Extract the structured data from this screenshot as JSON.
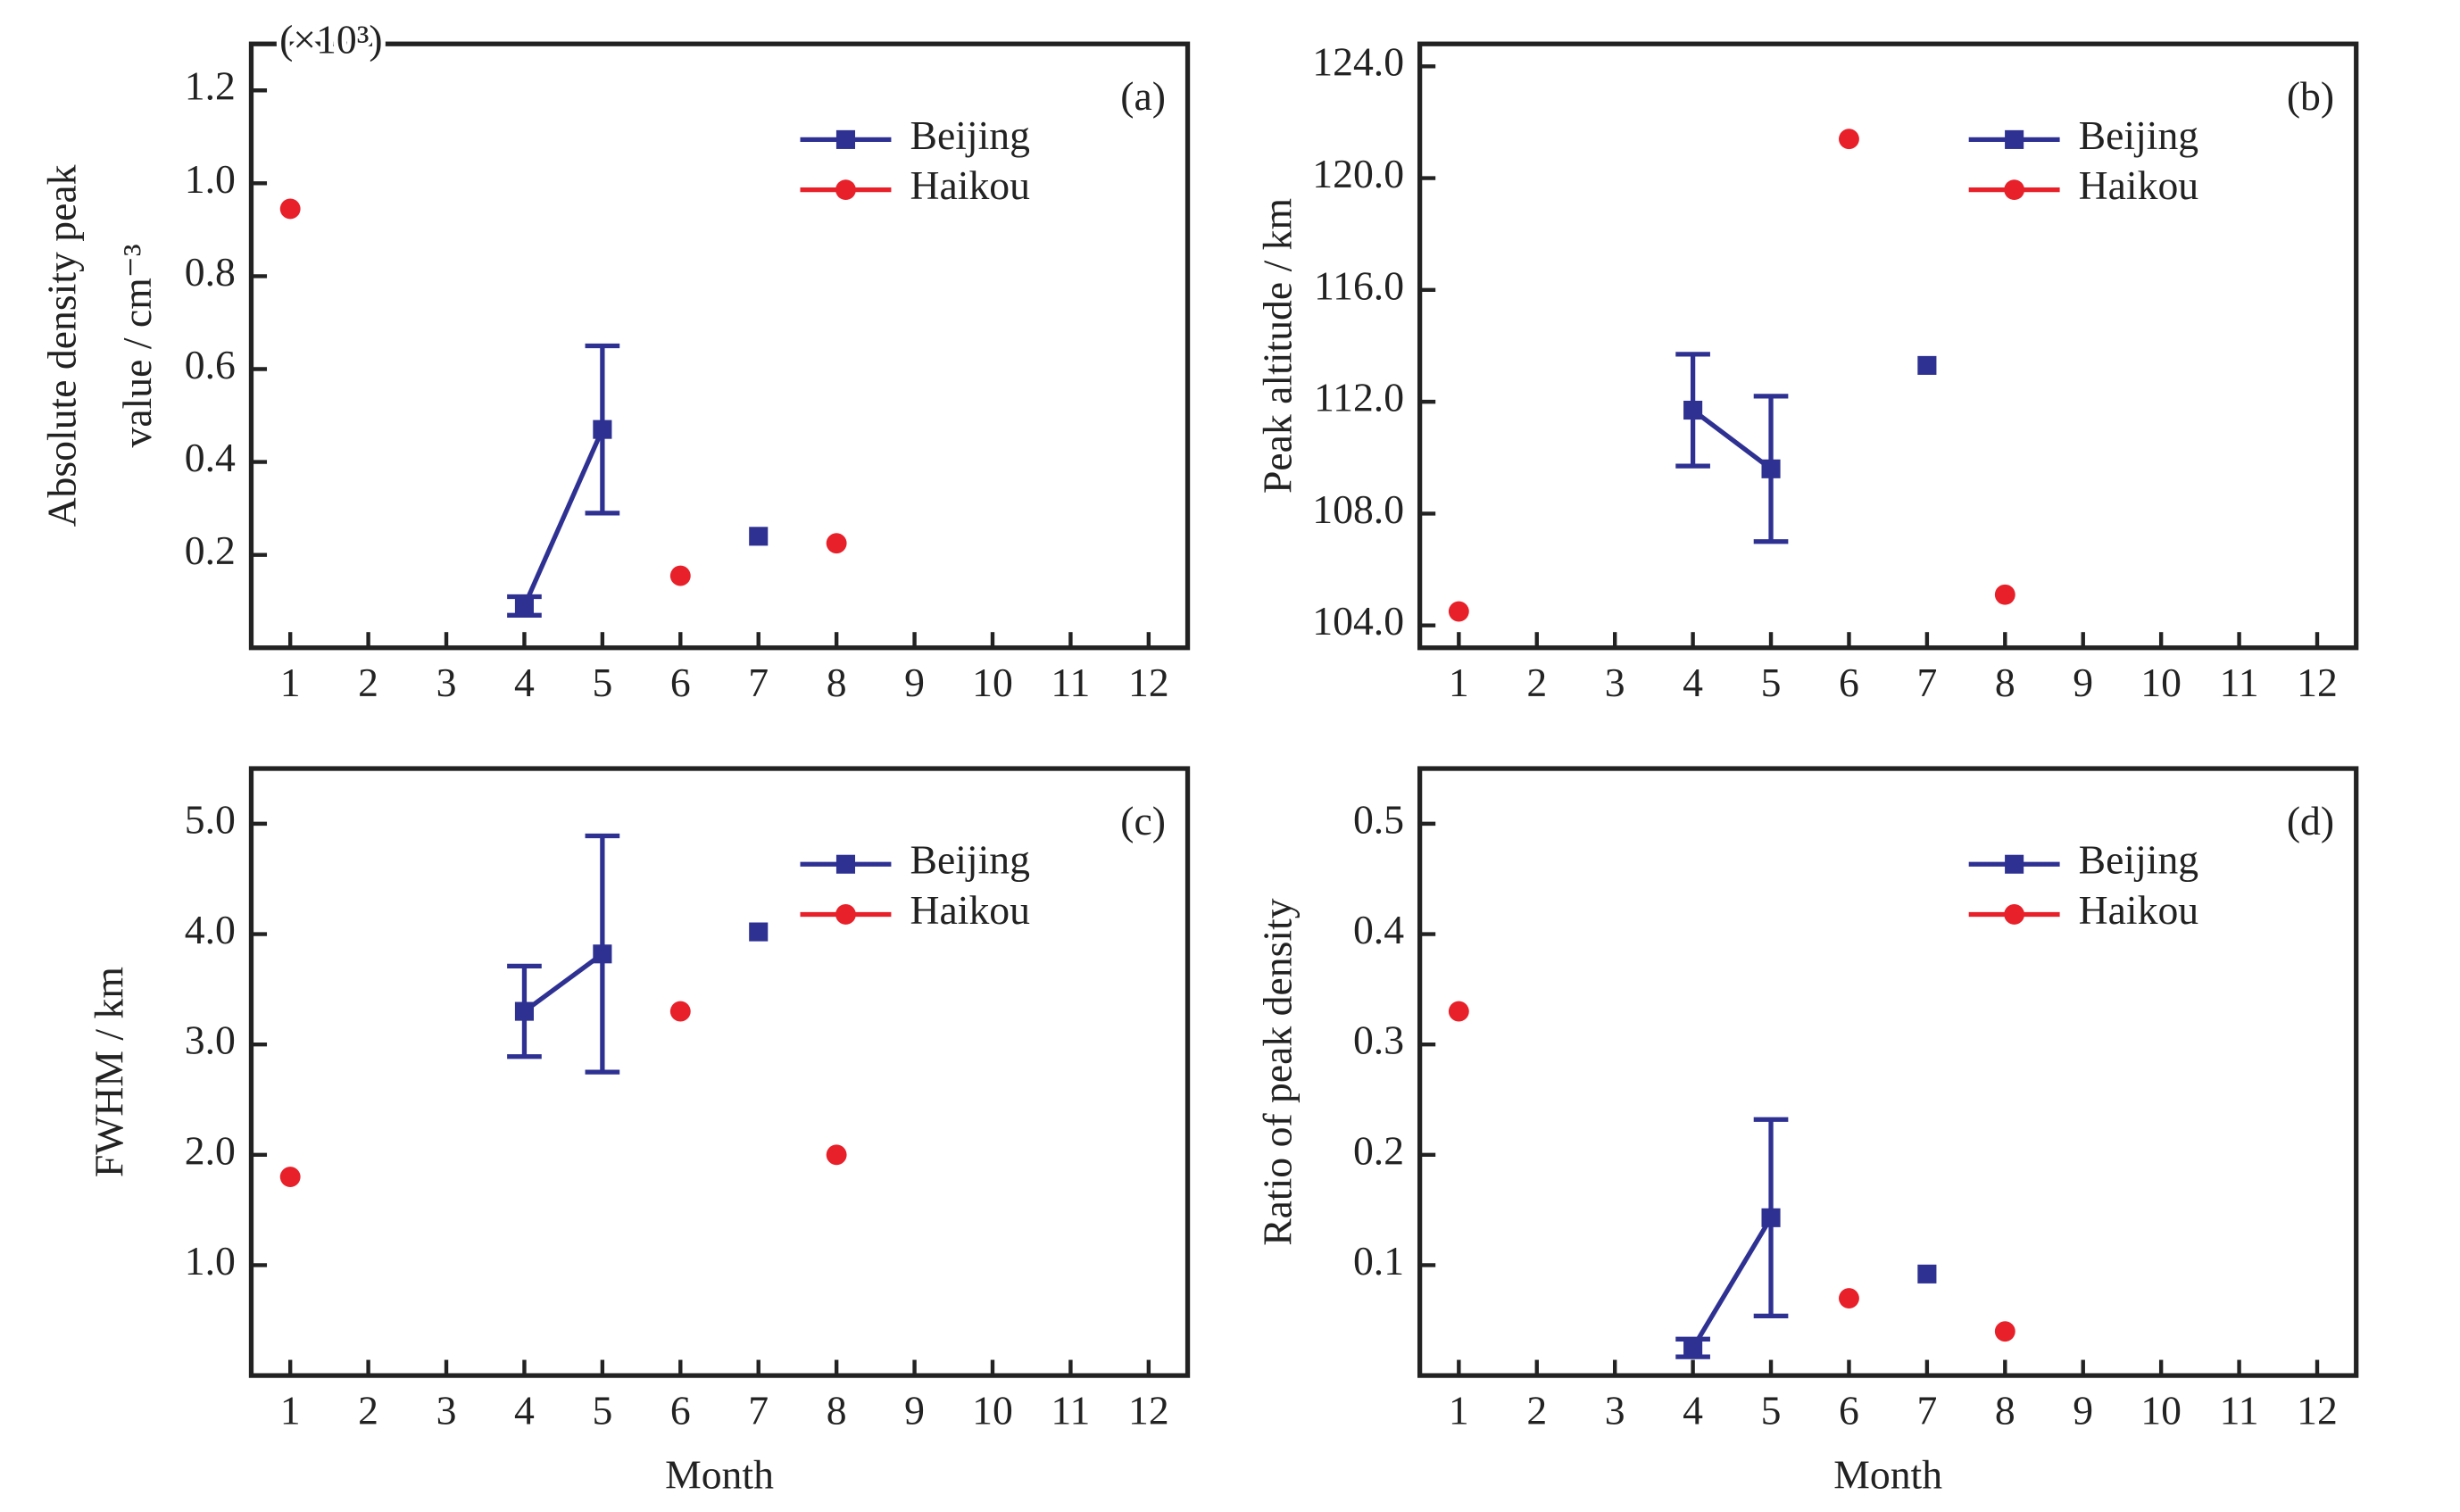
{
  "chart_data": [
    {
      "type": "line",
      "panel": "(a)",
      "annotation": "(×10³)",
      "ylabel": [
        "Absolute density peak",
        "value / cm⁻³"
      ],
      "xlim": [
        0.5,
        12.5
      ],
      "xticks": [
        1,
        2,
        3,
        4,
        5,
        6,
        7,
        8,
        9,
        10,
        11,
        12
      ],
      "ylim": [
        0,
        1.3
      ],
      "yticks": [
        0.2,
        0.4,
        0.6,
        0.8,
        {
          "value": 1,
          "label": "1.0"
        },
        1.2
      ],
      "legend": "upper right",
      "series": [
        {
          "name": "Beijing",
          "color": "#2e3192",
          "marker": "square",
          "x": [
            4,
            5,
            6,
            7
          ],
          "values": [
            0.09,
            0.47,
            null,
            0.24
          ],
          "errors": [
            0.02,
            0.18,
            null,
            null
          ]
        },
        {
          "name": "Haikou",
          "color": "#e8202a",
          "marker": "circle",
          "x": [
            1,
            2,
            3,
            4,
            5,
            6,
            7,
            8
          ],
          "values": [
            0.945,
            null,
            null,
            null,
            null,
            0.155,
            null,
            0.225
          ]
        }
      ]
    },
    {
      "type": "line",
      "panel": "(b)",
      "ylabel": [
        "Peak altitude / km"
      ],
      "xlim": [
        0.5,
        12.5
      ],
      "xticks": [
        1,
        2,
        3,
        4,
        5,
        6,
        7,
        8,
        9,
        10,
        11,
        12
      ],
      "ylim": [
        103.2,
        124.8
      ],
      "yticks": [
        {
          "value": 104,
          "label": "104.0"
        },
        {
          "value": 108,
          "label": "108.0"
        },
        {
          "value": 112,
          "label": "112.0"
        },
        {
          "value": 116,
          "label": "116.0"
        },
        {
          "value": 120,
          "label": "120.0"
        },
        {
          "value": 124,
          "label": "124.0"
        }
      ],
      "legend": "upper right",
      "series": [
        {
          "name": "Beijing",
          "color": "#2e3192",
          "marker": "square",
          "x": [
            4,
            5,
            6,
            7
          ],
          "values": [
            111.7,
            109.6,
            null,
            113.3
          ],
          "errors": [
            2.0,
            2.6,
            null,
            null
          ]
        },
        {
          "name": "Haikou",
          "color": "#e8202a",
          "marker": "circle",
          "x": [
            1,
            2,
            3,
            4,
            5,
            6,
            7,
            8
          ],
          "values": [
            104.5,
            null,
            null,
            null,
            null,
            121.4,
            null,
            105.1
          ]
        }
      ]
    },
    {
      "type": "line",
      "panel": "(c)",
      "ylabel": [
        "FWHM / km"
      ],
      "xlabel": "Month",
      "xlim": [
        0.5,
        12.5
      ],
      "xticks": [
        1,
        2,
        3,
        4,
        5,
        6,
        7,
        8,
        9,
        10,
        11,
        12
      ],
      "ylim": [
        0,
        5.5
      ],
      "yticks": [
        {
          "value": 1,
          "label": "1.0"
        },
        {
          "value": 2,
          "label": "2.0"
        },
        {
          "value": 3,
          "label": "3.0"
        },
        {
          "value": 4,
          "label": "4.0"
        },
        {
          "value": 5,
          "label": "5.0"
        }
      ],
      "legend": "upper right",
      "series": [
        {
          "name": "Beijing",
          "color": "#2e3192",
          "marker": "square",
          "x": [
            4,
            5,
            6,
            7
          ],
          "values": [
            3.3,
            3.82,
            null,
            4.02
          ],
          "errors": [
            0.41,
            1.07,
            null,
            null
          ]
        },
        {
          "name": "Haikou",
          "color": "#e8202a",
          "marker": "circle",
          "x": [
            1,
            2,
            3,
            4,
            5,
            6,
            7,
            8
          ],
          "values": [
            1.8,
            null,
            null,
            null,
            null,
            3.3,
            null,
            2.0
          ]
        }
      ]
    },
    {
      "type": "line",
      "panel": "(d)",
      "ylabel": [
        "Ratio of peak density"
      ],
      "xlabel": "Month",
      "xlim": [
        0.5,
        12.5
      ],
      "xticks": [
        1,
        2,
        3,
        4,
        5,
        6,
        7,
        8,
        9,
        10,
        11,
        12
      ],
      "ylim": [
        0,
        0.55
      ],
      "yticks": [
        0.1,
        0.2,
        0.3,
        0.4,
        0.5
      ],
      "legend": "upper right",
      "series": [
        {
          "name": "Beijing",
          "color": "#2e3192",
          "marker": "square",
          "x": [
            4,
            5,
            6,
            7
          ],
          "values": [
            0.025,
            0.143,
            null,
            0.092
          ],
          "errors": [
            0.008,
            0.089,
            null,
            null
          ]
        },
        {
          "name": "Haikou",
          "color": "#e8202a",
          "marker": "circle",
          "x": [
            1,
            2,
            3,
            4,
            5,
            6,
            7,
            8
          ],
          "values": [
            0.33,
            null,
            null,
            null,
            null,
            0.07,
            null,
            0.04
          ]
        }
      ]
    }
  ]
}
